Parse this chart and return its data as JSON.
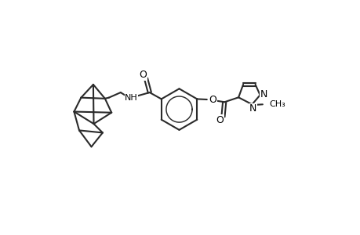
{
  "background_color": "#ffffff",
  "bond_color": "#2a2a2a",
  "line_width": 1.5,
  "figsize": [
    4.6,
    3.0
  ],
  "dpi": 100,
  "font_size_atoms": 9,
  "font_size_small": 8,
  "label_O_amide": "O",
  "label_NH": "NH",
  "label_O_ester": "O",
  "label_O_carbonyl": "O",
  "label_N1": "N",
  "label_N2": "N",
  "label_methyl": "CH₃"
}
